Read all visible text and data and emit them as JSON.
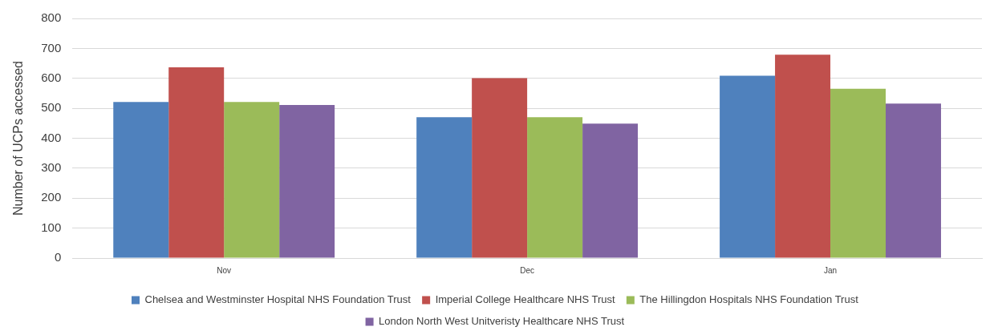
{
  "chart_data": {
    "type": "bar",
    "ylabel": "Number of UCPs accessed",
    "categories": [
      "Nov",
      "Dec",
      "Jan"
    ],
    "series": [
      {
        "name": "Chelsea and Westminster Hospital NHS Foundation Trust",
        "color": "#4f81bd",
        "values": [
          521,
          470,
          609
        ]
      },
      {
        "name": "Imperial College Healthcare NHS Trust",
        "color": "#c0504d",
        "values": [
          637,
          601,
          679
        ]
      },
      {
        "name": "The Hillingdon Hospitals NHS Foundation Trust",
        "color": "#9bbb59",
        "values": [
          521,
          470,
          565
        ]
      },
      {
        "name": "London North West Unitveristy Healthcare NHS Trust",
        "color": "#8064a2",
        "values": [
          511,
          449,
          516
        ]
      }
    ],
    "ylim": [
      0,
      800
    ],
    "yticks": [
      0,
      100,
      200,
      300,
      400,
      500,
      600,
      700,
      800
    ],
    "grid": "y",
    "legend": "bottom"
  }
}
